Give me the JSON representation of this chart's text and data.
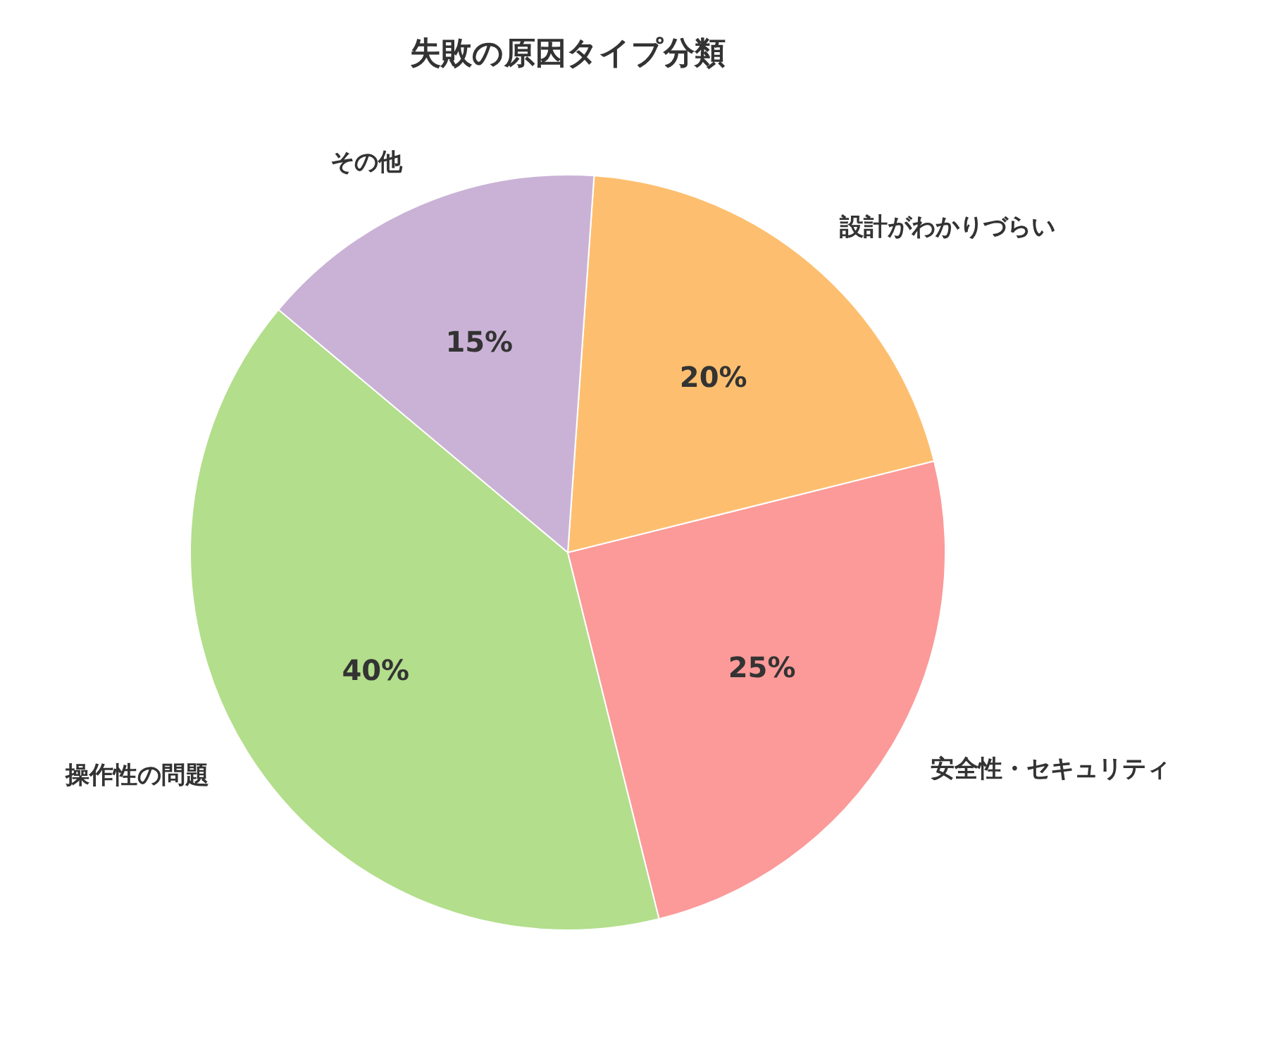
{
  "chart_data": {
    "type": "pie",
    "title": "失敗の原因タイプ分類",
    "categories": [
      "操作性の問題",
      "安全性・セキュリティ",
      "設計がわかりづらい",
      "その他"
    ],
    "values": [
      40,
      25,
      20,
      15
    ],
    "colors": [
      "#b3de8c",
      "#fb9a99",
      "#fdbf6f",
      "#cab2d6"
    ],
    "value_labels": [
      "40%",
      "25%",
      "20%",
      "15%"
    ]
  }
}
